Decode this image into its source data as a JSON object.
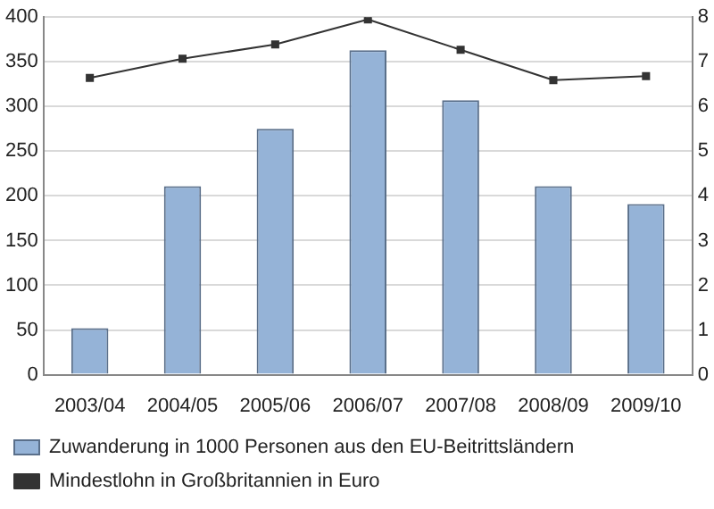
{
  "chart_data": {
    "type": "bar",
    "categories": [
      "2003/04",
      "2004/05",
      "2005/06",
      "2006/07",
      "2007/08",
      "2008/09",
      "2009/10"
    ],
    "series": [
      {
        "name": "Zuwanderung in 1000 Personen aus den EU-Beitrittsländern",
        "color": "#95b3d7",
        "values": [
          52,
          211,
          275,
          363,
          307,
          211,
          191
        ]
      },
      {
        "name": "Mindestlohn in Großbritannien in Euro",
        "type": "line",
        "axis": "y2",
        "color": "#333333",
        "values": [
          6.64,
          7.07,
          7.39,
          7.95,
          7.27,
          6.59,
          6.68
        ]
      }
    ],
    "ylim": [
      0,
      400
    ],
    "yticks": [
      0,
      50,
      100,
      150,
      200,
      250,
      300,
      350,
      400
    ],
    "y2lim": [
      0,
      8
    ],
    "y2ticks": [
      0,
      1,
      2,
      3,
      4,
      5,
      6,
      7,
      8
    ],
    "grid": "y",
    "legend": "bottom",
    "marker": "square",
    "line_style": "solid"
  }
}
